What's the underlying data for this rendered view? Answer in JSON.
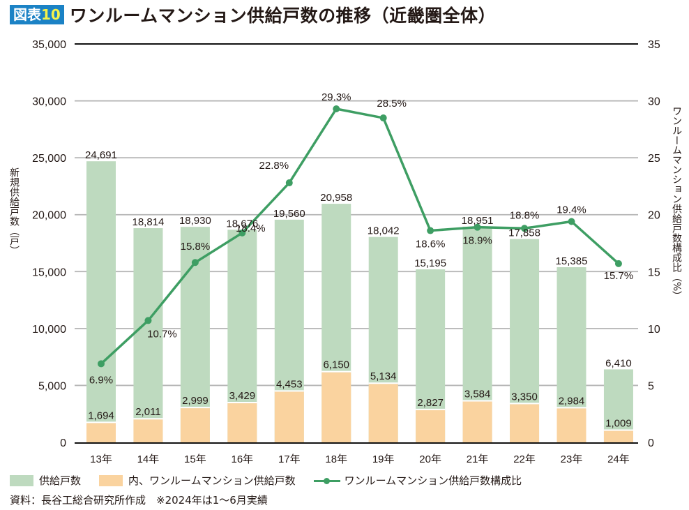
{
  "header": {
    "badge_prefix": "図表",
    "badge_number": "10",
    "title": "ワンルームマンション供給戸数の推移（近畿圏全体）"
  },
  "colors": {
    "badge_bg": "#1b82c5",
    "badge_number": "#f5f24a",
    "total_bar": "#bedabf",
    "oneroom_bar": "#fad39f",
    "ratio_line": "#3e9e63"
  },
  "chart_data": {
    "type": "bar",
    "title": "ワンルームマンション供給戸数の推移（近畿圏全体）",
    "categories": [
      "13年",
      "14年",
      "15年",
      "16年",
      "17年",
      "18年",
      "19年",
      "20年",
      "21年",
      "22年",
      "23年",
      "24年"
    ],
    "series": [
      {
        "name": "供給戸数",
        "type": "bar",
        "axis": "left",
        "values": [
          24691,
          18814,
          18930,
          18676,
          19560,
          20958,
          18042,
          15195,
          18951,
          17858,
          15385,
          6410
        ],
        "labels": [
          "24,691",
          "18,814",
          "18,930",
          "18,676",
          "19,560",
          "20,958",
          "18,042",
          "15,195",
          "18,951",
          "17,858",
          "15,385",
          "6,410"
        ]
      },
      {
        "name": "内、ワンルームマンション供給戸数",
        "type": "bar",
        "axis": "left",
        "values": [
          1694,
          2011,
          2999,
          3429,
          4453,
          6150,
          5134,
          2827,
          3584,
          3350,
          2984,
          1009
        ],
        "labels": [
          "1,694",
          "2,011",
          "2,999",
          "3,429",
          "4,453",
          "6,150",
          "5,134",
          "2,827",
          "3,584",
          "3,350",
          "2,984",
          "1,009"
        ]
      },
      {
        "name": "ワンルームマンション供給戸数構成比",
        "type": "line",
        "axis": "right",
        "values": [
          6.9,
          10.7,
          15.8,
          18.4,
          22.8,
          29.3,
          28.5,
          18.6,
          18.9,
          18.8,
          19.4,
          15.7
        ],
        "labels": [
          "6.9%",
          "10.7%",
          "15.8%",
          "18.4%",
          "22.8%",
          "29.3%",
          "28.5%",
          "18.6%",
          "18.9%",
          "18.8%",
          "19.4%",
          "15.7%"
        ]
      }
    ],
    "ylabel": "新規供給戸数（戸）",
    "y2label": "ワンルームマンション供給戸数構成比（%）",
    "ylim": [
      0,
      35000
    ],
    "y2lim": [
      0,
      35
    ],
    "yticks": [
      0,
      5000,
      10000,
      15000,
      20000,
      25000,
      30000,
      35000
    ],
    "ytick_labels": [
      "0",
      "5,000",
      "10,000",
      "15,000",
      "20,000",
      "25,000",
      "30,000",
      "35,000"
    ],
    "y2ticks": [
      0,
      5,
      10,
      15,
      20,
      25,
      30,
      35
    ],
    "y2tick_labels": [
      "0",
      "5",
      "10",
      "15",
      "20",
      "25",
      "30",
      "35"
    ],
    "grid": true,
    "legend": "bottom-left"
  },
  "legend": {
    "items": [
      "供給戸数",
      "内、ワンルームマンション供給戸数",
      "ワンルームマンション供給戸数構成比"
    ]
  },
  "footer": {
    "source": "資料：長谷工総合研究所作成　※2024年は1～6月実績"
  }
}
